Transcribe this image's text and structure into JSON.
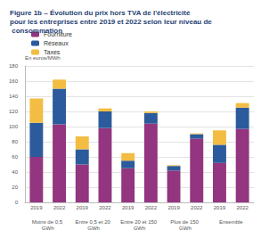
{
  "chart_data": {
    "type": "bar",
    "title": "Figure 1b – Évolution du prix hors TVA de l'électricité pour les entreprises entre 2019 et 2022 selon leur niveau de consommation",
    "y_label": "En euros/MWh",
    "categories": [
      "2019",
      "2022",
      "2019",
      "2022",
      "2019",
      "2022",
      "2019",
      "2022",
      "2019",
      "2022"
    ],
    "category_groups": [
      "Moins de 0,5 GWh",
      "Entre 0,5 et 20 GWh",
      "Entre 20 et 150 GWh",
      "Plus de 150 GWh",
      "Ensemble"
    ],
    "series": [
      {
        "name": "Fourniture",
        "color": "#93357f",
        "values": [
          60,
          103,
          50,
          98,
          45,
          104,
          42,
          84,
          52,
          97
        ]
      },
      {
        "name": "Réseaux",
        "color": "#2b5b9c",
        "values": [
          45,
          47,
          20,
          22,
          10,
          14,
          6,
          6,
          24,
          28
        ]
      },
      {
        "name": "Taxes",
        "color": "#f2bd42",
        "values": [
          32,
          12,
          17,
          4,
          10,
          2,
          1,
          1,
          19,
          6
        ]
      }
    ],
    "ylim": [
      0,
      180
    ],
    "yticks": [
      0,
      20,
      40,
      60,
      80,
      100,
      120,
      140,
      160,
      180
    ],
    "stacked": true,
    "legend": "top-left",
    "grid": true,
    "data_labels": false
  }
}
